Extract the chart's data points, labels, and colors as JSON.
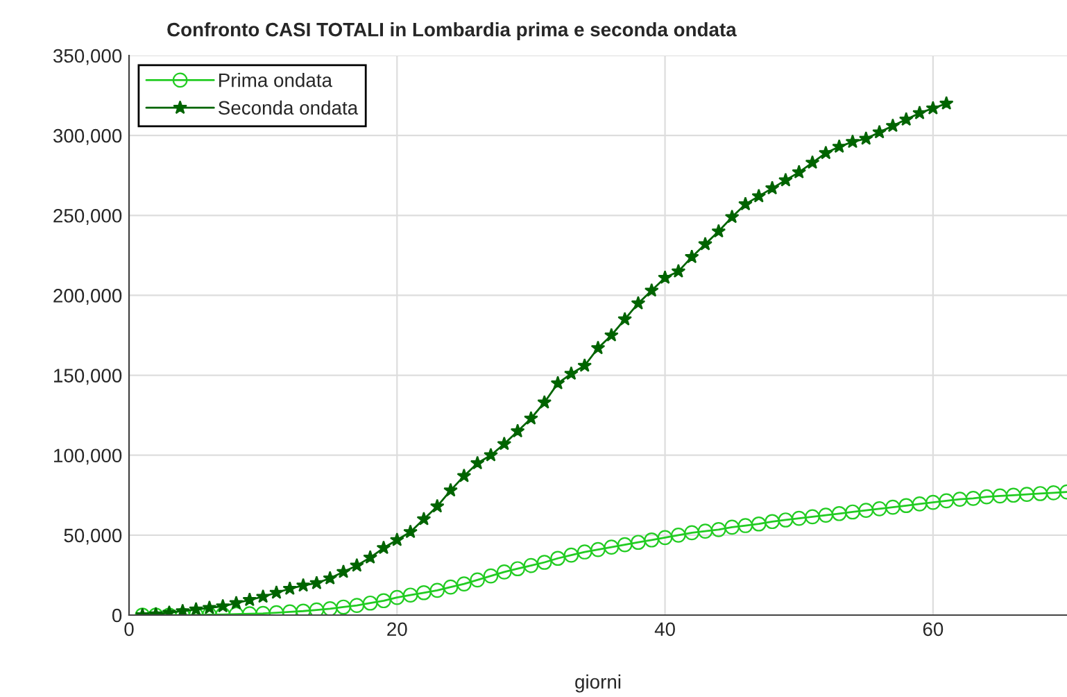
{
  "chart_data": {
    "type": "line",
    "title": "Confronto CASI TOTALI in Lombardia prima e seconda ondata",
    "xlabel": "giorni",
    "xlim": [
      0,
      70
    ],
    "xticks": [
      0,
      20,
      40,
      60
    ],
    "ylim": [
      0,
      350000
    ],
    "yticks": [
      {
        "value": 0,
        "label": "0"
      },
      {
        "value": 50000,
        "label": "50,000"
      },
      {
        "value": 100000,
        "label": "100,000"
      },
      {
        "value": 150000,
        "label": "150,000"
      },
      {
        "value": 200000,
        "label": "200,000"
      },
      {
        "value": 250000,
        "label": "250,000"
      },
      {
        "value": 300000,
        "label": "300,000"
      },
      {
        "value": 350000,
        "label": "350,000"
      }
    ],
    "grid": true,
    "legend": "top left",
    "line_style": "solid",
    "series": [
      {
        "name": "Prima ondata",
        "color": "#22cc22",
        "marker": "circle",
        "x": [
          1,
          2,
          3,
          4,
          5,
          6,
          7,
          8,
          9,
          10,
          11,
          12,
          13,
          14,
          15,
          16,
          17,
          18,
          19,
          20,
          21,
          22,
          23,
          24,
          25,
          26,
          27,
          28,
          29,
          30,
          31,
          32,
          33,
          34,
          35,
          36,
          37,
          38,
          39,
          40,
          41,
          42,
          43,
          44,
          45,
          46,
          47,
          48,
          49,
          50,
          51,
          52,
          53,
          54,
          55,
          56,
          57,
          58,
          59,
          60,
          61,
          62,
          63,
          64,
          65,
          66,
          67,
          68,
          69,
          70
        ],
        "values": [
          0,
          0,
          0,
          0,
          200,
          300,
          400,
          600,
          800,
          1000,
          1500,
          2000,
          2500,
          3200,
          4000,
          5000,
          6000,
          7500,
          9000,
          11000,
          12500,
          14000,
          15500,
          17500,
          19500,
          22000,
          24500,
          27000,
          29000,
          31000,
          33000,
          35500,
          37500,
          39500,
          41000,
          42500,
          44000,
          45500,
          47000,
          48500,
          50000,
          51500,
          52500,
          53500,
          55000,
          56000,
          57000,
          58500,
          59500,
          60500,
          61500,
          62500,
          63500,
          64500,
          65500,
          66500,
          67500,
          68500,
          69500,
          70500,
          71500,
          72500,
          73000,
          74000,
          74500,
          75000,
          75500,
          76000,
          76500,
          77000
        ]
      },
      {
        "name": "Seconda ondata",
        "color": "#006400",
        "marker": "star",
        "x": [
          1,
          2,
          3,
          4,
          5,
          6,
          7,
          8,
          9,
          10,
          11,
          12,
          13,
          14,
          15,
          16,
          17,
          18,
          19,
          20,
          21,
          22,
          23,
          24,
          25,
          26,
          27,
          28,
          29,
          30,
          31,
          32,
          33,
          34,
          35,
          36,
          37,
          38,
          39,
          40,
          41,
          42,
          43,
          44,
          45,
          46,
          47,
          48,
          49,
          50,
          51,
          52,
          53,
          54,
          55,
          56,
          57,
          58,
          59,
          60,
          61
        ],
        "values": [
          0,
          500,
          1500,
          2500,
          3500,
          4500,
          5500,
          7500,
          9500,
          11500,
          14000,
          16500,
          18500,
          20000,
          23000,
          27000,
          31000,
          36000,
          42000,
          47000,
          52000,
          60000,
          68000,
          78000,
          87000,
          95000,
          100000,
          107000,
          115000,
          123000,
          133000,
          145000,
          151000,
          156000,
          167000,
          175000,
          185000,
          195000,
          203000,
          211000,
          215000,
          224000,
          232000,
          240000,
          249000,
          257000,
          262000,
          267000,
          272000,
          277000,
          283000,
          289000,
          293000,
          296000,
          298000,
          302000,
          306000,
          310000,
          314000,
          317000,
          320000
        ]
      }
    ]
  }
}
